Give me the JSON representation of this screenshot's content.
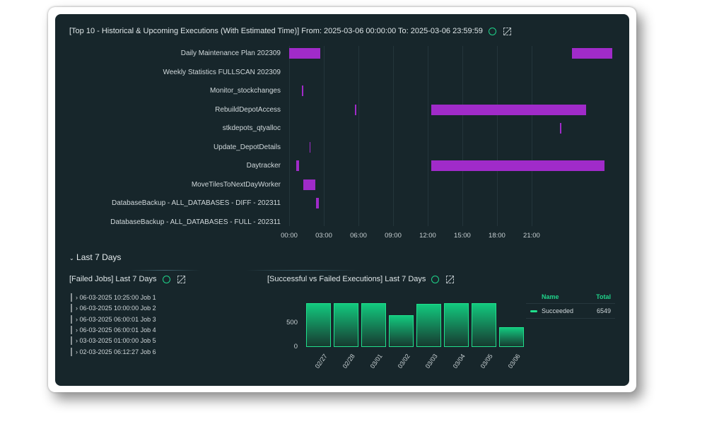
{
  "gantt": {
    "title": "[Top 10 - Historical & Upcoming Executions (With Estimated Time)] From: 2025-03-06 00:00:00 To: 2025-03-06 23:59:59",
    "info_icon": "info-circle-icon",
    "no_image_icon": "image-off-icon",
    "bar_color": "#a02bc9",
    "chart_data": {
      "type": "gantt",
      "x_unit": "hours",
      "xlim": [
        0,
        28
      ],
      "x_ticks": [
        "00:00",
        "03:00",
        "06:00",
        "09:00",
        "12:00",
        "15:00",
        "18:00",
        "21:00"
      ],
      "rows": [
        {
          "name": "Daily Maintenance Plan 202309",
          "bars": [
            [
              0,
              2.7
            ],
            [
              24.5,
              28
            ]
          ]
        },
        {
          "name": "Weekly Statistics FULLSCAN 202309",
          "bars": []
        },
        {
          "name": "Monitor_stockchanges",
          "bars": [
            [
              1.1,
              1.2
            ]
          ]
        },
        {
          "name": "RebuildDepotAccess",
          "bars": [
            [
              5.7,
              5.8
            ],
            [
              12.3,
              25.7
            ]
          ]
        },
        {
          "name": "stkdepots_qtyalloc",
          "bars": [
            [
              23.45,
              23.55
            ]
          ]
        },
        {
          "name": "Update_DepotDetails",
          "bars": [
            [
              1.75,
              1.85
            ]
          ]
        },
        {
          "name": "Daytracker",
          "bars": [
            [
              0.6,
              0.85
            ],
            [
              12.3,
              27.3
            ]
          ]
        },
        {
          "name": "MoveTilesToNextDayWorker",
          "bars": [
            [
              1.2,
              2.25
            ]
          ]
        },
        {
          "name": "DatabaseBackup - ALL_DATABASES - DIFF - 202311",
          "bars": [
            [
              2.3,
              2.55
            ]
          ]
        },
        {
          "name": "DatabaseBackup - ALL_DATABASES - FULL - 202311",
          "bars": []
        }
      ]
    }
  },
  "section": {
    "label": "Last 7 Days",
    "chevron_icon": "chevron-down-icon"
  },
  "failed": {
    "title": "[Failed Jobs] Last 7 Days",
    "items": [
      "06-03-2025 10:25:00 Job 1",
      "06-03-2025 10:00:00 Job 2",
      "06-03-2025 06:00:01 Job 3",
      "06-03-2025 06:00:01 Job 4",
      "03-03-2025 01:00:00 Job 5",
      "02-03-2025 06:12:27 Job 6"
    ]
  },
  "executions": {
    "title": "[Successful vs Failed Executions] Last 7 Days",
    "legend": {
      "name_header": "Name",
      "total_header": "Total",
      "rows": [
        {
          "name": "Succeeded",
          "total": "6549",
          "color": "#20e08c"
        }
      ]
    },
    "chart_data": {
      "type": "bar",
      "categories": [
        "02/27",
        "02/28",
        "03/01",
        "03/02",
        "03/03",
        "03/04",
        "03/05",
        "03/06"
      ],
      "series": [
        {
          "name": "Succeeded",
          "values": [
            915,
            915,
            915,
            665,
            900,
            915,
            915,
            409
          ]
        }
      ],
      "y_ticks": [
        "0",
        "500"
      ],
      "ylim": [
        0,
        1000
      ],
      "grid": false,
      "legend": "right"
    }
  }
}
